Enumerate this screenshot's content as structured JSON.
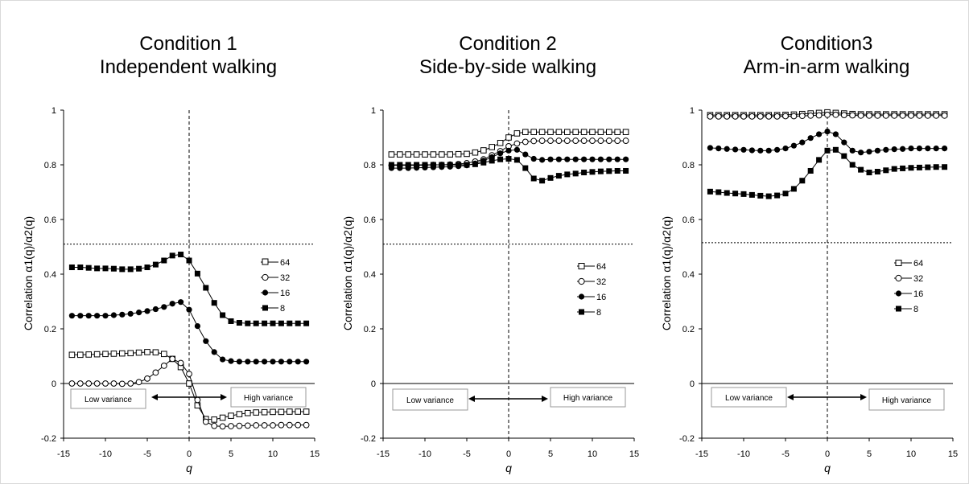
{
  "chart_data": [
    {
      "type": "line",
      "title": "Condition 1",
      "subtitle": "Independent walking",
      "xlabel": "q",
      "ylabel": "Correlation α1(q)/α2(q)",
      "xlim": [
        -15,
        15
      ],
      "ylim": [
        -0.2,
        1
      ],
      "xticks": [
        "-15",
        "-10",
        "-5",
        "0",
        "5",
        "10",
        "15"
      ],
      "yticks": [
        "-0.2",
        "0",
        "0.2",
        "0.4",
        "0.6",
        "0.8",
        "1"
      ],
      "threshold": 0.51,
      "legend_position": "right",
      "annotations": {
        "low": "Low variance",
        "high": "High variance"
      },
      "x": [
        -14,
        -13,
        -12,
        -11,
        -10,
        -9,
        -8,
        -7,
        -6,
        -5,
        -4,
        -3,
        -2,
        -1,
        0,
        1,
        2,
        3,
        4,
        5,
        6,
        7,
        8,
        9,
        10,
        11,
        12,
        13,
        14
      ],
      "series": [
        {
          "name": "64",
          "marker": "open-square",
          "values": [
            0.105,
            0.105,
            0.106,
            0.107,
            0.108,
            0.109,
            0.11,
            0.111,
            0.113,
            0.115,
            0.114,
            0.108,
            0.09,
            0.06,
            0.0,
            -0.08,
            -0.13,
            -0.132,
            -0.125,
            -0.118,
            -0.112,
            -0.108,
            -0.106,
            -0.105,
            -0.104,
            -0.104,
            -0.103,
            -0.103,
            -0.103
          ]
        },
        {
          "name": "32",
          "marker": "open-circle",
          "values": [
            0.0,
            0.0,
            0.0,
            0.0,
            0.0,
            0.0,
            -0.001,
            0.0,
            0.005,
            0.018,
            0.04,
            0.065,
            0.09,
            0.075,
            0.035,
            -0.06,
            -0.14,
            -0.155,
            -0.157,
            -0.156,
            -0.155,
            -0.154,
            -0.153,
            -0.153,
            -0.153,
            -0.152,
            -0.152,
            -0.152,
            -0.152
          ]
        },
        {
          "name": "16",
          "marker": "filled-circle",
          "values": [
            0.248,
            0.248,
            0.248,
            0.248,
            0.248,
            0.25,
            0.252,
            0.255,
            0.26,
            0.265,
            0.272,
            0.28,
            0.292,
            0.298,
            0.27,
            0.21,
            0.155,
            0.115,
            0.088,
            0.082,
            0.08,
            0.08,
            0.08,
            0.08,
            0.08,
            0.08,
            0.08,
            0.08,
            0.08
          ]
        },
        {
          "name": "8",
          "marker": "filled-square",
          "values": [
            0.425,
            0.425,
            0.423,
            0.421,
            0.421,
            0.42,
            0.418,
            0.418,
            0.42,
            0.425,
            0.435,
            0.45,
            0.468,
            0.472,
            0.45,
            0.402,
            0.35,
            0.295,
            0.25,
            0.228,
            0.222,
            0.22,
            0.22,
            0.22,
            0.22,
            0.22,
            0.22,
            0.22,
            0.22
          ]
        }
      ]
    },
    {
      "type": "line",
      "title": "Condition 2",
      "subtitle": "Side-by-side walking",
      "xlabel": "q",
      "ylabel": "Correlation α1(q)/α2(q)",
      "xlim": [
        -15,
        15
      ],
      "ylim": [
        -0.2,
        1
      ],
      "xticks": [
        "-15",
        "-10",
        "-5",
        "0",
        "5",
        "10",
        "15"
      ],
      "yticks": [
        "-0.2",
        "0",
        "0.2",
        "0.4",
        "0.6",
        "0.8",
        "1"
      ],
      "threshold": 0.51,
      "legend_position": "right",
      "annotations": {
        "low": "Low variance",
        "high": "High variance"
      },
      "x": [
        -14,
        -13,
        -12,
        -11,
        -10,
        -9,
        -8,
        -7,
        -6,
        -5,
        -4,
        -3,
        -2,
        -1,
        0,
        1,
        2,
        3,
        4,
        5,
        6,
        7,
        8,
        9,
        10,
        11,
        12,
        13,
        14
      ],
      "series": [
        {
          "name": "64",
          "marker": "open-square",
          "values": [
            0.838,
            0.838,
            0.838,
            0.838,
            0.838,
            0.838,
            0.838,
            0.838,
            0.839,
            0.84,
            0.845,
            0.853,
            0.865,
            0.88,
            0.9,
            0.915,
            0.92,
            0.92,
            0.92,
            0.92,
            0.92,
            0.92,
            0.92,
            0.92,
            0.92,
            0.92,
            0.92,
            0.92,
            0.92
          ]
        },
        {
          "name": "32",
          "marker": "open-circle",
          "values": [
            0.798,
            0.798,
            0.798,
            0.798,
            0.799,
            0.8,
            0.8,
            0.801,
            0.803,
            0.806,
            0.812,
            0.82,
            0.835,
            0.85,
            0.868,
            0.878,
            0.884,
            0.887,
            0.888,
            0.888,
            0.888,
            0.888,
            0.888,
            0.888,
            0.888,
            0.888,
            0.888,
            0.888,
            0.888
          ]
        },
        {
          "name": "16",
          "marker": "filled-circle",
          "values": [
            0.788,
            0.788,
            0.788,
            0.789,
            0.79,
            0.791,
            0.792,
            0.793,
            0.795,
            0.798,
            0.805,
            0.815,
            0.828,
            0.842,
            0.852,
            0.855,
            0.838,
            0.822,
            0.818,
            0.82,
            0.82,
            0.82,
            0.82,
            0.82,
            0.82,
            0.82,
            0.82,
            0.82,
            0.82
          ]
        },
        {
          "name": "8",
          "marker": "filled-square",
          "values": [
            0.8,
            0.8,
            0.8,
            0.8,
            0.8,
            0.8,
            0.8,
            0.8,
            0.8,
            0.8,
            0.802,
            0.808,
            0.815,
            0.82,
            0.822,
            0.818,
            0.788,
            0.75,
            0.742,
            0.752,
            0.76,
            0.765,
            0.768,
            0.772,
            0.774,
            0.776,
            0.777,
            0.778,
            0.778
          ]
        }
      ]
    },
    {
      "type": "line",
      "title": "Condition3",
      "subtitle": "Arm-in-arm walking",
      "xlabel": "q",
      "ylabel": "Correlation α1(q)/α2(q)",
      "xlim": [
        -15,
        15
      ],
      "ylim": [
        -0.2,
        1
      ],
      "xticks": [
        "-15",
        "-10",
        "-5",
        "0",
        "5",
        "10",
        "15"
      ],
      "yticks": [
        "-0.2",
        "0",
        "0.2",
        "0.4",
        "0.6",
        "0.8",
        "1"
      ],
      "threshold": 0.515,
      "legend_position": "right",
      "annotations": {
        "low": "Low variance",
        "high": "High variance"
      },
      "x": [
        -14,
        -13,
        -12,
        -11,
        -10,
        -9,
        -8,
        -7,
        -6,
        -5,
        -4,
        -3,
        -2,
        -1,
        0,
        1,
        2,
        3,
        4,
        5,
        6,
        7,
        8,
        9,
        10,
        11,
        12,
        13,
        14
      ],
      "series": [
        {
          "name": "64",
          "marker": "open-square",
          "values": [
            0.982,
            0.982,
            0.982,
            0.982,
            0.982,
            0.982,
            0.982,
            0.982,
            0.982,
            0.983,
            0.984,
            0.986,
            0.988,
            0.99,
            0.992,
            0.99,
            0.988,
            0.986,
            0.985,
            0.985,
            0.985,
            0.985,
            0.985,
            0.985,
            0.985,
            0.985,
            0.985,
            0.985,
            0.985
          ]
        },
        {
          "name": "32",
          "marker": "open-circle",
          "values": [
            0.977,
            0.977,
            0.977,
            0.977,
            0.977,
            0.977,
            0.977,
            0.977,
            0.977,
            0.978,
            0.978,
            0.979,
            0.98,
            0.981,
            0.983,
            0.983,
            0.982,
            0.981,
            0.98,
            0.98,
            0.98,
            0.98,
            0.98,
            0.98,
            0.98,
            0.98,
            0.98,
            0.98,
            0.98
          ]
        },
        {
          "name": "16",
          "marker": "filled-circle",
          "values": [
            0.862,
            0.86,
            0.858,
            0.856,
            0.855,
            0.853,
            0.852,
            0.852,
            0.855,
            0.86,
            0.87,
            0.882,
            0.898,
            0.912,
            0.922,
            0.912,
            0.882,
            0.852,
            0.845,
            0.848,
            0.852,
            0.855,
            0.857,
            0.858,
            0.86,
            0.86,
            0.86,
            0.86,
            0.86
          ]
        },
        {
          "name": "8",
          "marker": "filled-square",
          "values": [
            0.702,
            0.7,
            0.697,
            0.695,
            0.693,
            0.69,
            0.687,
            0.685,
            0.688,
            0.695,
            0.712,
            0.742,
            0.778,
            0.818,
            0.852,
            0.855,
            0.832,
            0.8,
            0.782,
            0.772,
            0.775,
            0.78,
            0.785,
            0.787,
            0.789,
            0.79,
            0.791,
            0.792,
            0.792
          ]
        }
      ]
    }
  ]
}
